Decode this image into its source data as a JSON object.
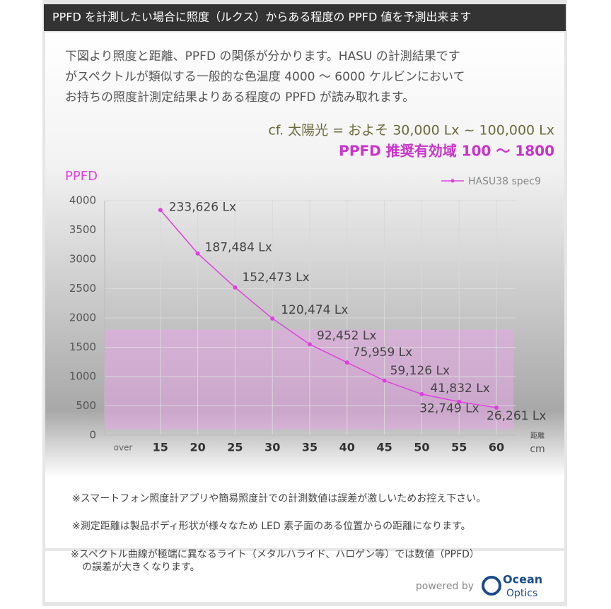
{
  "header": {
    "title": "PPFD を計測したい場合に照度（ルクス）からある程度の PPFD 値を予測出来ます"
  },
  "intro": [
    "下図より照度と距離、PPFD の関係が分かります。HASU の計測結果です",
    "がスペクトルが類似する一般的な色温度 4000 ～ 6000 ケルビンにおいて",
    "お持ちの照度計測定結果よりある程度の PPFD が読み取れます。"
  ],
  "reference": "cf. 太陽光 = およそ 30,000 Lx ~ 100,000 Lx",
  "recommended": "PPFD 推奨有効域 100 ～ 1800",
  "chart_data": {
    "type": "line",
    "y_label": "PPFD",
    "x_label": "距離",
    "x_unit": "cm",
    "categories": [
      "over",
      "15",
      "20",
      "25",
      "30",
      "35",
      "40",
      "45",
      "50",
      "55",
      "60"
    ],
    "series": [
      {
        "name": "HASU38 spec9",
        "color": "#e040e0",
        "values": [
          null,
          3840,
          3100,
          2520,
          1990,
          1550,
          1240,
          930,
          700,
          570,
          470
        ],
        "point_labels": [
          null,
          "233,626 Lx",
          "187,484 Lx",
          "152,473 Lx",
          "120,474 Lx",
          "92,452 Lx",
          "75,959 Lx",
          "59,126 Lx",
          "41,832 Lx",
          "32,749 Lx",
          "26,261 Lx"
        ]
      }
    ],
    "highlight_range": [
      100,
      1800
    ],
    "highlight_color": "#e8a8e8",
    "ylim": [
      0,
      4000
    ],
    "yticks": [
      0,
      500,
      1000,
      1500,
      2000,
      2500,
      3000,
      3500,
      4000
    ],
    "grid": true
  },
  "notes": [
    "※スマートフォン照度計アプリや簡易照度計での計測数値は誤差が激しいためお控え下さい。",
    "※測定距離は製品ボディ形状が様々なため LED 素子面のある位置からの距離になります。",
    "※スペクトル曲線が極端に異なるライト（メタルハライド、ハロゲン等）では数値（PPFD）",
    "の誤差が大きくなります。"
  ],
  "footer": {
    "powered": "powered by",
    "brand1": "Ocean",
    "brand2": "Optics"
  }
}
